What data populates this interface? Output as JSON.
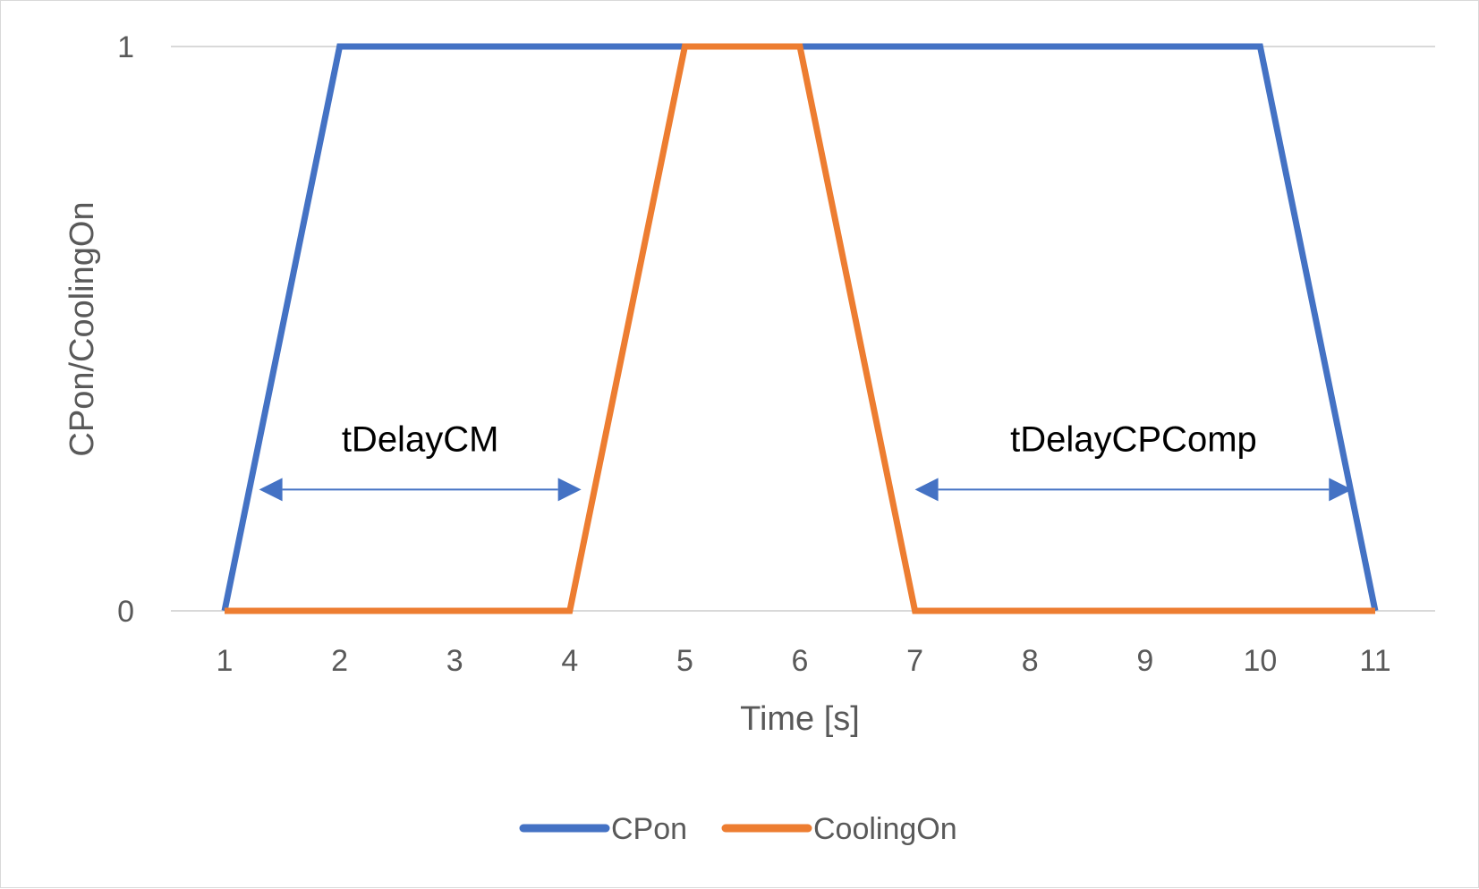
{
  "chart_data": {
    "type": "line",
    "title": "",
    "xlabel": "Time [s]",
    "ylabel": "CPon/CoolingOn",
    "categories": [
      "1",
      "2",
      "3",
      "4",
      "5",
      "6",
      "7",
      "8",
      "9",
      "10",
      "11"
    ],
    "x": [
      1,
      2,
      3,
      4,
      5,
      6,
      7,
      8,
      9,
      10,
      11
    ],
    "xlim": [
      1,
      11
    ],
    "ylim": [
      0,
      1
    ],
    "yticks": [
      "0",
      "1"
    ],
    "grid": "horizontal",
    "legend_position": "bottom",
    "series": [
      {
        "name": "CPon",
        "color": "#4472c4",
        "values": [
          0,
          1,
          1,
          1,
          1,
          1,
          1,
          1,
          1,
          1,
          0
        ]
      },
      {
        "name": "CoolingOn",
        "color": "#ed7d31",
        "values": [
          0,
          0,
          0,
          0,
          1,
          1,
          0,
          0,
          0,
          0,
          0
        ]
      }
    ],
    "annotations": [
      {
        "text": "tDelayCM",
        "from_x": 1.3,
        "to_x": 4.1,
        "y": 0.215,
        "color": "#4472c4"
      },
      {
        "text": "tDelayCPComp",
        "from_x": 7.0,
        "to_x": 10.8,
        "y": 0.215,
        "color": "#4472c4"
      }
    ]
  }
}
